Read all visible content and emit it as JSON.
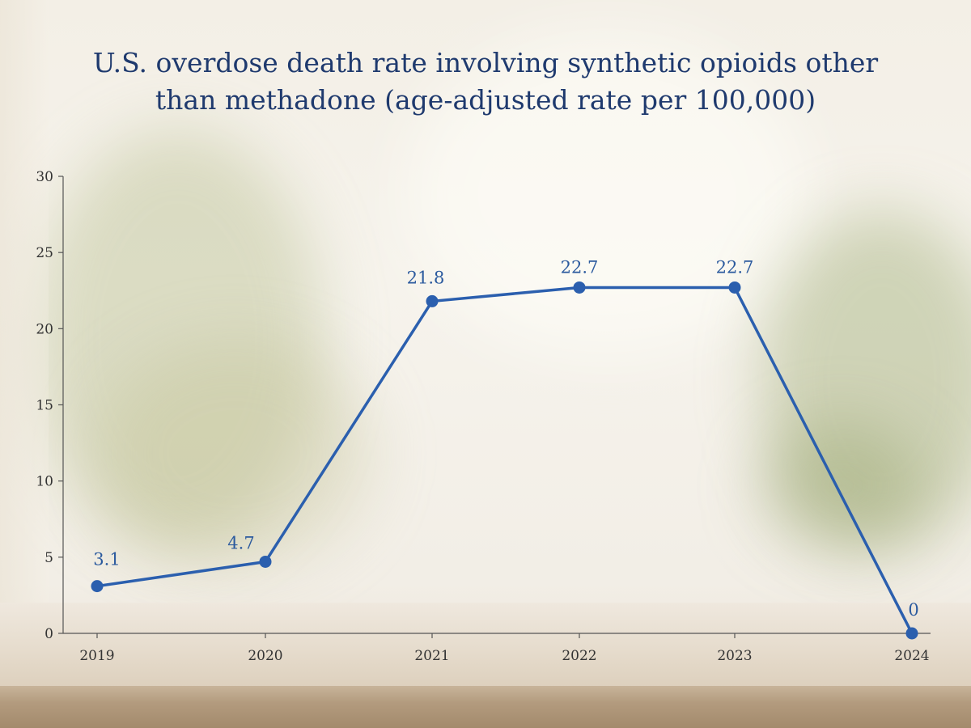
{
  "chart_data": {
    "type": "line",
    "title": "U.S. overdose death rate involving synthetic opioids other than methadone (age-adjusted rate per 100,000)",
    "categories": [
      "2019",
      "2020",
      "2021",
      "2022",
      "2023",
      "2024"
    ],
    "series": [
      {
        "values": [
          3.1,
          4.7,
          21.8,
          22.7,
          22.7,
          0
        ]
      }
    ],
    "data_labels": [
      "3.1",
      "4.7",
      "21.8",
      "22.7",
      "22.7",
      "0"
    ],
    "y_ticks": [
      "0",
      "5",
      "10",
      "15",
      "20",
      "25",
      "30"
    ],
    "ylim": [
      0,
      30
    ],
    "grid": false,
    "colors": {
      "line": "#2b5fae",
      "title": "#1f3a6e"
    }
  }
}
